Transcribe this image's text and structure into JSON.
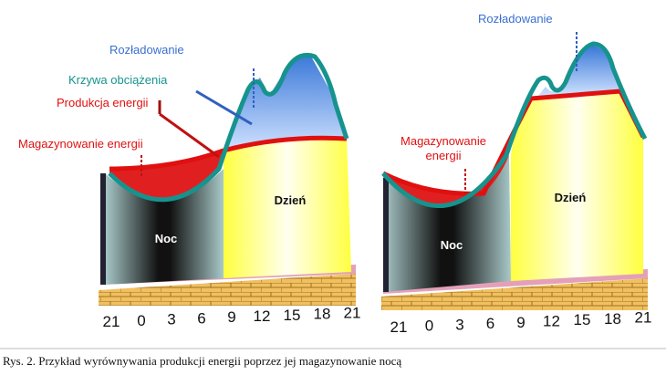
{
  "left_panel": {
    "discharge": "Rozładowanie",
    "load_curve": "Krzywa obciążenia",
    "production": "Produkcja energii",
    "storage": "Magazynowanie energii",
    "night": "Noc",
    "day": "Dzień",
    "hours": [
      "21",
      "0",
      "3",
      "6",
      "9",
      "12",
      "15",
      "18",
      "21"
    ]
  },
  "right_panel": {
    "discharge": "Rozładowanie",
    "storage_lines": [
      "Magazynowanie",
      "energii"
    ],
    "night": "Noc",
    "day": "Dzień",
    "hours": [
      "21",
      "0",
      "3",
      "6",
      "9",
      "12",
      "15",
      "18",
      "21"
    ]
  },
  "caption": "Rys. 2. Przykład wyrównywania produkcji energii poprzez jej magazynowanie nocą"
}
